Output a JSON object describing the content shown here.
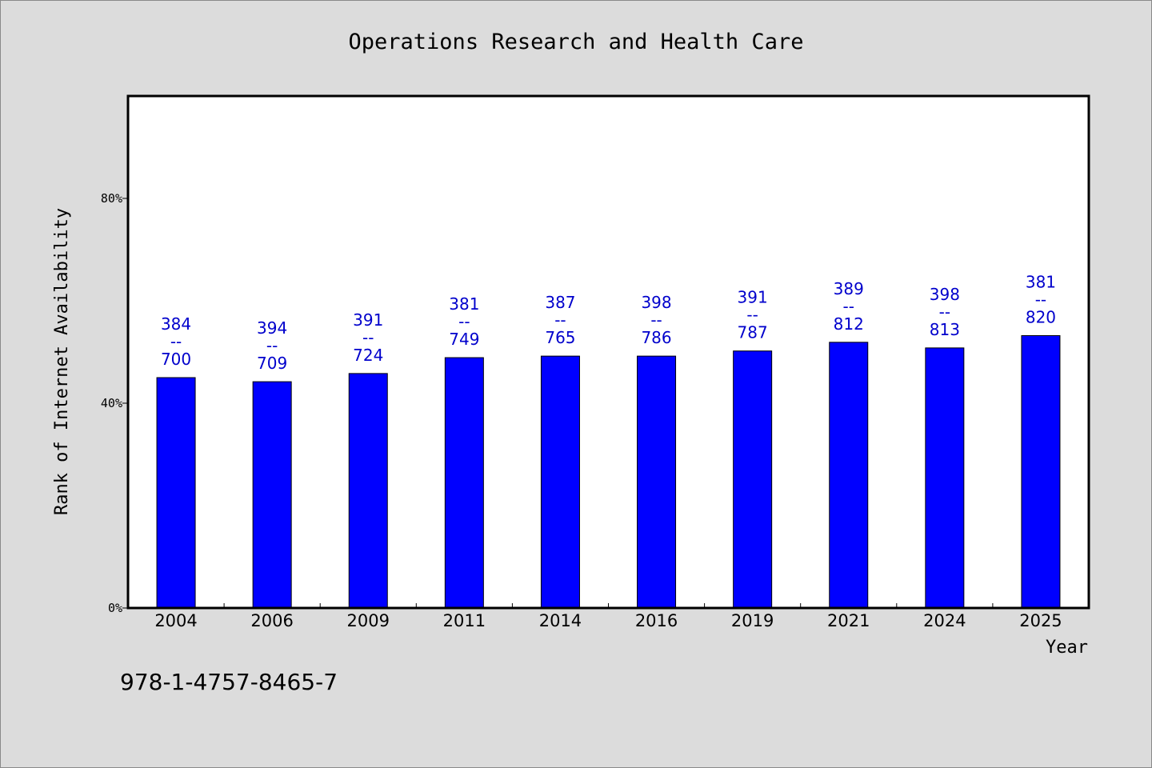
{
  "chart_data": {
    "type": "bar",
    "title": "Operations Research and Health Care",
    "xlabel": "Year",
    "ylabel": "Rank of Internet Availability",
    "categories": [
      "2004",
      "2006",
      "2009",
      "2011",
      "2014",
      "2016",
      "2019",
      "2021",
      "2024",
      "2025"
    ],
    "values": [
      45.0,
      44.2,
      45.8,
      48.9,
      49.2,
      49.2,
      50.2,
      51.9,
      50.8,
      53.2
    ],
    "data_labels": [
      [
        "384",
        "--",
        "700"
      ],
      [
        "394",
        "--",
        "709"
      ],
      [
        "391",
        "--",
        "724"
      ],
      [
        "381",
        "--",
        "749"
      ],
      [
        "387",
        "--",
        "765"
      ],
      [
        "398",
        "--",
        "786"
      ],
      [
        "391",
        "--",
        "787"
      ],
      [
        "389",
        "--",
        "812"
      ],
      [
        "398",
        "--",
        "813"
      ],
      [
        "381",
        "--",
        "820"
      ]
    ],
    "yticks": [
      {
        "value": 0,
        "label": "0%"
      },
      {
        "value": 40,
        "label": "40%"
      },
      {
        "value": 80,
        "label": "80%"
      }
    ],
    "ylim": [
      0,
      100
    ],
    "grid": false,
    "bar_color": "#0000ff",
    "label_color": "#0000cc",
    "caption": "978-1-4757-8465-7"
  }
}
